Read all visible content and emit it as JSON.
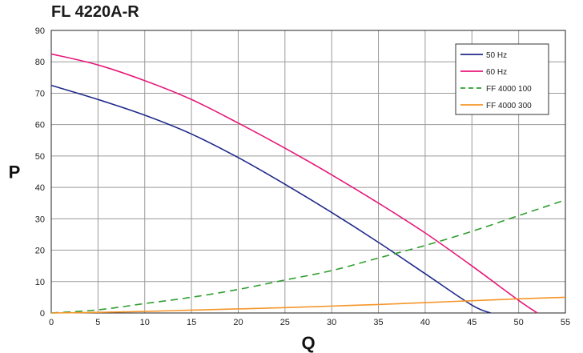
{
  "chart_data": {
    "type": "line",
    "title": "FL 4220A-R",
    "xlabel": "Q",
    "ylabel": "P",
    "xlim": [
      0,
      55
    ],
    "ylim": [
      0,
      90
    ],
    "xticks": [
      0,
      5,
      10,
      15,
      20,
      25,
      30,
      35,
      40,
      45,
      50,
      55
    ],
    "yticks": [
      0,
      10,
      20,
      30,
      40,
      50,
      60,
      70,
      80,
      90
    ],
    "grid": true,
    "legend_position": "top-right",
    "series": [
      {
        "name": "50 Hz",
        "color": "#1f2a8a",
        "style": "solid",
        "x": [
          0,
          5,
          10,
          15,
          20,
          25,
          30,
          35,
          40,
          45,
          47
        ],
        "y": [
          72.5,
          68,
          63,
          57,
          49.5,
          41,
          32,
          22.5,
          12.5,
          2.5,
          0
        ]
      },
      {
        "name": "60 Hz",
        "color": "#e6197a",
        "style": "solid",
        "x": [
          0,
          5,
          10,
          15,
          20,
          25,
          30,
          35,
          40,
          45,
          50,
          52
        ],
        "y": [
          82.5,
          79,
          74,
          68,
          60.5,
          52.5,
          44,
          35,
          25.5,
          15,
          4,
          0
        ]
      },
      {
        "name": "FF 4000 100",
        "color": "#2e9e2e",
        "style": "dashed",
        "x": [
          0,
          5,
          10,
          15,
          20,
          25,
          30,
          35,
          40,
          45,
          50,
          55
        ],
        "y": [
          0,
          1,
          3,
          5,
          7.5,
          10.5,
          13.5,
          17.5,
          21.5,
          26,
          31,
          36
        ]
      },
      {
        "name": "FF 4000 300",
        "color": "#f5962a",
        "style": "solid",
        "x": [
          0,
          5,
          10,
          15,
          20,
          25,
          30,
          35,
          40,
          45,
          50,
          55
        ],
        "y": [
          0,
          0.2,
          0.5,
          0.9,
          1.3,
          1.7,
          2.2,
          2.7,
          3.3,
          3.9,
          4.5,
          5
        ]
      }
    ]
  }
}
